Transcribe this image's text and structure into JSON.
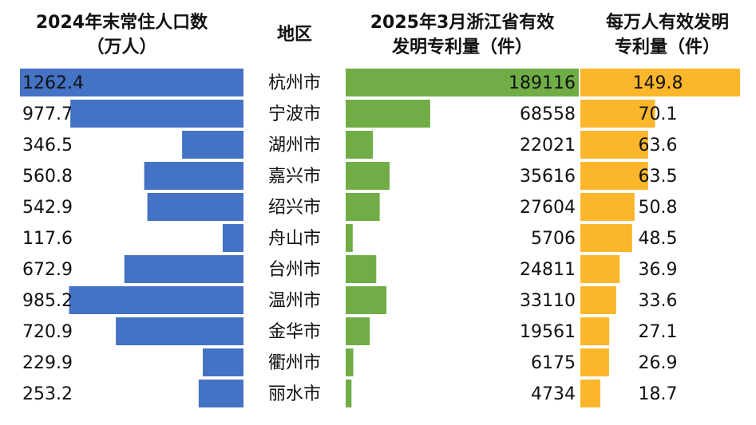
{
  "headers": {
    "population": [
      "2024年末常住人口数",
      "（万人）"
    ],
    "region": "地区",
    "patents": [
      "2025年3月浙江省有效",
      "发明专利量（件）"
    ],
    "per_10k": [
      "每万人有效发明",
      "专利量（件）"
    ]
  },
  "colors": {
    "population_bar": "#4472c4",
    "patents_bar": "#70ad47",
    "per_10k_bar": "#fbb62b",
    "text": "#111111"
  },
  "chart_data": {
    "type": "bar",
    "categories": [
      "杭州市",
      "宁波市",
      "湖州市",
      "嘉兴市",
      "绍兴市",
      "舟山市",
      "台州市",
      "温州市",
      "金华市",
      "衢州市",
      "丽水市"
    ],
    "series": [
      {
        "name": "2024年末常住人口数（万人）",
        "values": [
          1262.4,
          977.7,
          346.5,
          560.8,
          542.9,
          117.6,
          672.9,
          985.2,
          720.9,
          229.9,
          253.2
        ]
      },
      {
        "name": "2025年3月浙江省有效发明专利量（件）",
        "values": [
          189116,
          68558,
          22021,
          35616,
          27604,
          5706,
          24811,
          33110,
          19561,
          6175,
          4734
        ]
      },
      {
        "name": "每万人有效发明专利量（件）",
        "values": [
          149.8,
          70.1,
          63.6,
          63.5,
          50.8,
          48.5,
          36.9,
          33.6,
          27.1,
          26.9,
          18.7
        ]
      }
    ]
  }
}
